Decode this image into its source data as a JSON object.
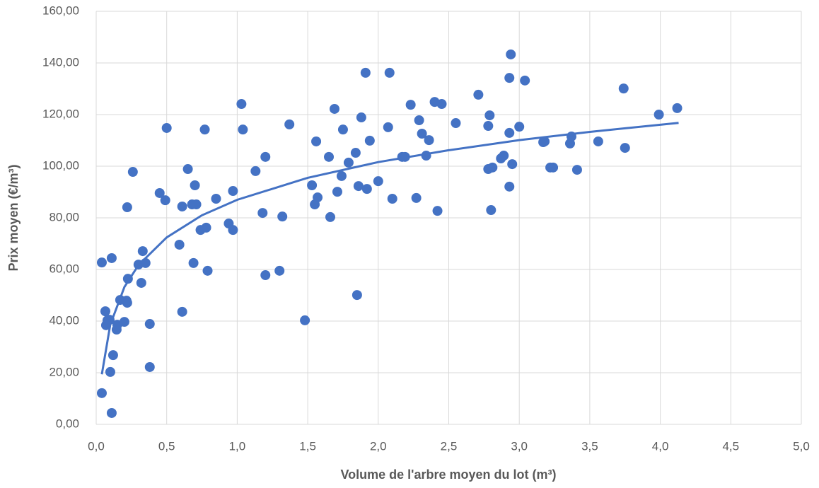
{
  "chart_data": {
    "type": "scatter",
    "x_label": "Volume de l'arbre moyen du lot (m³)",
    "y_label": "Prix moyen (€/m³)",
    "color": "#4472c4",
    "grid": true,
    "x": [
      0.04,
      0.04,
      0.065,
      0.07,
      0.08,
      0.095,
      0.1,
      0.11,
      0.11,
      0.12,
      0.145,
      0.15,
      0.17,
      0.2,
      0.215,
      0.22,
      0.225,
      0.22,
      0.26,
      0.3,
      0.32,
      0.33,
      0.35,
      0.38,
      0.38,
      0.45,
      0.49,
      0.5,
      0.59,
      0.61,
      0.61,
      0.65,
      0.68,
      0.69,
      0.7,
      0.71,
      0.74,
      0.77,
      0.78,
      0.79,
      0.85,
      0.94,
      0.97,
      0.97,
      1.03,
      1.04,
      1.13,
      1.18,
      1.2,
      1.2,
      1.3,
      1.32,
      1.37,
      1.48,
      1.53,
      1.56,
      1.55,
      1.57,
      1.65,
      1.66,
      1.69,
      1.71,
      1.74,
      1.75,
      1.79,
      1.84,
      1.85,
      1.86,
      1.88,
      1.91,
      1.92,
      1.94,
      2.0,
      2.07,
      2.08,
      2.1,
      2.17,
      2.19,
      2.23,
      2.27,
      2.29,
      2.31,
      2.34,
      2.36,
      2.4,
      2.42,
      2.45,
      2.55,
      2.71,
      2.78,
      2.78,
      2.79,
      2.8,
      2.81,
      2.87,
      2.89,
      2.93,
      2.93,
      2.94,
      2.93,
      2.95,
      3.0,
      3.04,
      3.17,
      3.18,
      3.22,
      3.24,
      3.41,
      3.36,
      3.37,
      3.56,
      3.74,
      3.75,
      3.99,
      4.12
    ],
    "values": [
      62.7,
      12.1,
      43.8,
      38.4,
      40.3,
      40.5,
      20.3,
      64.4,
      4.4,
      26.8,
      36.7,
      38.6,
      48.2,
      39.7,
      47.9,
      47.1,
      56.4,
      84.1,
      97.8,
      61.9,
      54.8,
      67.1,
      62.5,
      38.9,
      22.2,
      89.6,
      86.8,
      114.8,
      69.6,
      84.4,
      43.6,
      98.9,
      85.2,
      62.5,
      92.6,
      85.2,
      75.3,
      114.2,
      76.2,
      59.5,
      87.4,
      77.8,
      90.4,
      75.3,
      124.1,
      114.2,
      98.1,
      81.9,
      103.6,
      57.8,
      59.5,
      80.5,
      116.2,
      40.3,
      92.6,
      109.6,
      85.2,
      87.9,
      103.6,
      80.3,
      122.2,
      90.1,
      96.2,
      114.2,
      101.4,
      105.2,
      50.1,
      92.3,
      118.9,
      136.2,
      91.2,
      109.9,
      94.2,
      115.1,
      136.2,
      87.4,
      103.6,
      103.6,
      123.8,
      87.7,
      117.8,
      112.6,
      104.1,
      110.1,
      124.9,
      82.7,
      124.1,
      116.7,
      127.7,
      115.6,
      98.9,
      119.7,
      83.0,
      99.5,
      103.0,
      104.1,
      134.2,
      112.9,
      143.3,
      92.1,
      100.8,
      115.3,
      133.2,
      109.3,
      109.6,
      99.5,
      99.5,
      98.6,
      108.8,
      111.5,
      109.6,
      130.1,
      107.1,
      120.0,
      122.5
    ],
    "trendline": {
      "x": [
        0.04,
        0.1,
        0.2,
        0.3,
        0.5,
        0.75,
        1,
        1.5,
        2,
        2.5,
        3,
        3.5,
        4.13
      ],
      "values": [
        19.4,
        38.6,
        53.2,
        61.7,
        72.4,
        81.0,
        87.0,
        95.5,
        101.6,
        106.2,
        110.1,
        113.3,
        116.8
      ]
    },
    "xlim": [
      0,
      5
    ],
    "xticks": [
      {
        "value": 0,
        "label": "0,0"
      },
      {
        "value": 0.5,
        "label": "0,5"
      },
      {
        "value": 1,
        "label": "1,0"
      },
      {
        "value": 1.5,
        "label": "1,5"
      },
      {
        "value": 2,
        "label": "2,0"
      },
      {
        "value": 2.5,
        "label": "2,5"
      },
      {
        "value": 3,
        "label": "3,0"
      },
      {
        "value": 3.5,
        "label": "3,5"
      },
      {
        "value": 4,
        "label": "4,0"
      },
      {
        "value": 4.5,
        "label": "4,5"
      },
      {
        "value": 5,
        "label": "5,0"
      }
    ],
    "ylim": [
      0,
      160
    ],
    "yticks": [
      {
        "value": 0,
        "label": "0,00"
      },
      {
        "value": 20,
        "label": "20,00"
      },
      {
        "value": 40,
        "label": "40,00"
      },
      {
        "value": 60,
        "label": "60,00"
      },
      {
        "value": 80,
        "label": "80,00"
      },
      {
        "value": 100,
        "label": "100,00"
      },
      {
        "value": 120,
        "label": "120,00"
      },
      {
        "value": 140,
        "label": "140,00"
      },
      {
        "value": 160,
        "label": "160,00"
      }
    ]
  }
}
